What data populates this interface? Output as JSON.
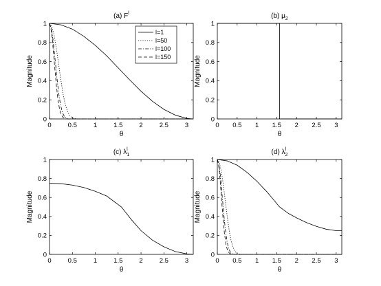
{
  "chart_data": [
    {
      "type": "line",
      "title": "(a) F",
      "title_sup": "l",
      "xlabel": "θ",
      "ylabel": "Magnitude",
      "xlim": [
        0,
        3.1416
      ],
      "ylim": [
        0,
        1
      ],
      "xticks": [
        "0",
        "0.5",
        "1",
        "1.5",
        "2",
        "2.5",
        "3"
      ],
      "yticks": [
        "0",
        "0.2",
        "0.4",
        "0.6",
        "0.8",
        "1"
      ],
      "grid": false,
      "legend": {
        "position": "top-right",
        "entries": [
          {
            "label": "l=1",
            "style": "solid"
          },
          {
            "label": "l=50",
            "style": "dotted"
          },
          {
            "label": "l=100",
            "style": "dashdot"
          },
          {
            "label": "l=150",
            "style": "dashed"
          }
        ]
      },
      "series": [
        {
          "name": "l=1",
          "style": "solid",
          "x": [
            0,
            0.25,
            0.5,
            0.75,
            1.0,
            1.25,
            1.5,
            1.75,
            2.0,
            2.25,
            2.5,
            2.75,
            3.0,
            3.1416
          ],
          "y": [
            1.0,
            0.985,
            0.94,
            0.865,
            0.77,
            0.66,
            0.535,
            0.41,
            0.29,
            0.185,
            0.1,
            0.04,
            0.005,
            0.0
          ]
        },
        {
          "name": "l=50",
          "style": "dotted",
          "x": [
            0,
            0.05,
            0.1,
            0.15,
            0.2,
            0.25,
            0.3,
            0.35,
            0.4,
            0.45,
            0.5,
            0.55,
            0.6,
            1.0,
            1.5,
            3.1416
          ],
          "y": [
            1.0,
            0.97,
            0.88,
            0.74,
            0.57,
            0.4,
            0.25,
            0.14,
            0.07,
            0.03,
            0.01,
            0.004,
            0.0,
            0.0,
            0.0,
            0.0
          ]
        },
        {
          "name": "l=100",
          "style": "dashdot",
          "x": [
            0,
            0.04,
            0.08,
            0.12,
            0.16,
            0.2,
            0.24,
            0.28,
            0.32,
            0.36,
            0.4,
            0.5,
            1.0,
            3.1416
          ],
          "y": [
            1.0,
            0.95,
            0.82,
            0.63,
            0.44,
            0.27,
            0.15,
            0.07,
            0.03,
            0.01,
            0.0,
            0.0,
            0.0,
            0.0
          ]
        },
        {
          "name": "l=150",
          "style": "dashed",
          "x": [
            0,
            0.03,
            0.06,
            0.1,
            0.14,
            0.18,
            0.22,
            0.26,
            0.3,
            0.35,
            0.4,
            1.0,
            3.1416
          ],
          "y": [
            1.0,
            0.95,
            0.84,
            0.62,
            0.4,
            0.22,
            0.1,
            0.04,
            0.015,
            0.003,
            0.0,
            0.0,
            0.0
          ]
        }
      ]
    },
    {
      "type": "line",
      "title": "(b) μ",
      "title_sub": "2",
      "xlabel": "θ",
      "ylabel": "Magnitude",
      "xlim": [
        0,
        3.1416
      ],
      "ylim": [
        0,
        1
      ],
      "xticks": [
        "0",
        "0.5",
        "1",
        "1.5",
        "2",
        "2.5",
        "3"
      ],
      "yticks": [
        "0",
        "0.2",
        "0.4",
        "0.6",
        "0.8",
        "1"
      ],
      "grid": false,
      "series": [
        {
          "style": "solid",
          "x": [
            0,
            1.5708,
            1.5708,
            3.1416
          ],
          "y": [
            1.0,
            1.0,
            0.0,
            0.0
          ]
        }
      ]
    },
    {
      "type": "line",
      "title": "(c) λ",
      "title_sub": "1",
      "title_sup": "l",
      "xlabel": "θ",
      "ylabel": "Magnitude",
      "xlim": [
        0,
        3.1416
      ],
      "ylim": [
        0,
        1
      ],
      "xticks": [
        "0",
        "0.5",
        "1",
        "1.5",
        "2",
        "2.5",
        "3"
      ],
      "yticks": [
        "0",
        "0.2",
        "0.4",
        "0.6",
        "0.8",
        "1"
      ],
      "grid": false,
      "series": [
        {
          "style": "solid",
          "x": [
            0,
            0.25,
            0.5,
            0.75,
            1.0,
            1.25,
            1.5708,
            1.8,
            2.0,
            2.25,
            2.5,
            2.75,
            3.0,
            3.1416
          ],
          "y": [
            0.75,
            0.745,
            0.73,
            0.705,
            0.665,
            0.615,
            0.5,
            0.36,
            0.25,
            0.15,
            0.08,
            0.03,
            0.005,
            0.0
          ]
        }
      ]
    },
    {
      "type": "line",
      "title": "(d) λ",
      "title_sub": "2",
      "title_sup": "l",
      "xlabel": "θ",
      "ylabel": "Magnitude",
      "xlim": [
        0,
        3.1416
      ],
      "ylim": [
        0,
        1
      ],
      "xticks": [
        "0",
        "0.5",
        "1",
        "1.5",
        "2",
        "2.5",
        "3"
      ],
      "yticks": [
        "0",
        "0.2",
        "0.4",
        "0.6",
        "0.8",
        "1"
      ],
      "grid": false,
      "series": [
        {
          "style": "solid",
          "x": [
            0,
            0.25,
            0.5,
            0.75,
            1.0,
            1.25,
            1.5708,
            1.8,
            2.0,
            2.25,
            2.5,
            2.75,
            3.0,
            3.1416
          ],
          "y": [
            1.0,
            0.985,
            0.94,
            0.865,
            0.77,
            0.66,
            0.5,
            0.43,
            0.385,
            0.335,
            0.295,
            0.265,
            0.25,
            0.25
          ]
        },
        {
          "style": "dotted",
          "x": [
            0,
            0.05,
            0.1,
            0.15,
            0.2,
            0.25,
            0.3,
            0.35,
            0.4,
            0.45,
            0.5,
            0.55,
            0.6,
            1.0,
            1.5,
            3.1416
          ],
          "y": [
            1.0,
            0.97,
            0.88,
            0.74,
            0.57,
            0.4,
            0.25,
            0.14,
            0.07,
            0.03,
            0.01,
            0.004,
            0.0,
            0.0,
            0.0,
            0.0
          ]
        },
        {
          "style": "dashdot",
          "x": [
            0,
            0.04,
            0.08,
            0.12,
            0.16,
            0.2,
            0.24,
            0.28,
            0.32,
            0.36,
            0.4,
            0.5,
            1.0,
            3.1416
          ],
          "y": [
            1.0,
            0.95,
            0.82,
            0.63,
            0.44,
            0.27,
            0.15,
            0.07,
            0.03,
            0.01,
            0.0,
            0.0,
            0.0,
            0.0
          ]
        },
        {
          "style": "dashed",
          "x": [
            0,
            0.03,
            0.06,
            0.1,
            0.14,
            0.18,
            0.22,
            0.26,
            0.3,
            0.35,
            0.4,
            1.0,
            3.1416
          ],
          "y": [
            1.0,
            0.95,
            0.84,
            0.62,
            0.4,
            0.22,
            0.1,
            0.04,
            0.015,
            0.003,
            0.0,
            0.0,
            0.0
          ]
        }
      ]
    }
  ]
}
